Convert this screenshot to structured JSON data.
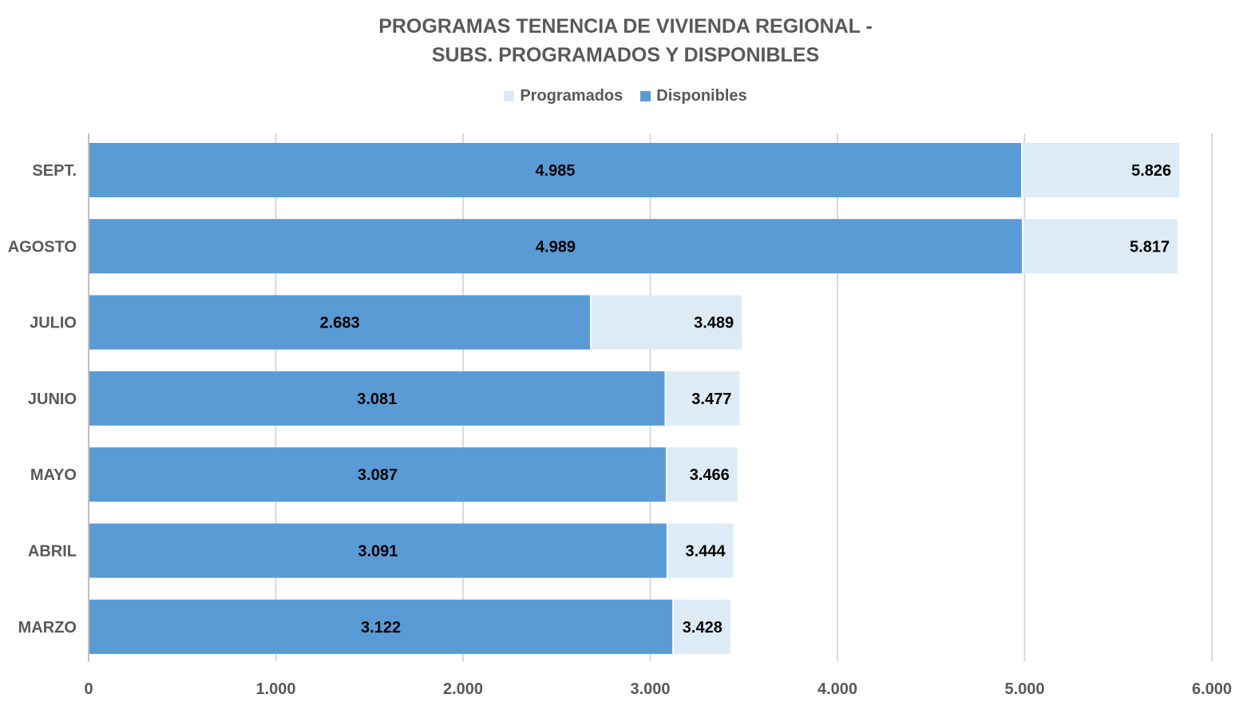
{
  "chart_data": {
    "type": "bar",
    "orientation": "horizontal",
    "title": [
      "PROGRAMAS TENENCIA DE VIVIENDA REGIONAL -",
      "SUBS. PROGRAMADOS Y DISPONIBLES"
    ],
    "categories": [
      "SEPT.",
      "AGOSTO",
      "JULIO",
      "JUNIO",
      "MAYO",
      "ABRIL",
      "MARZO"
    ],
    "series": [
      {
        "name": "Programados",
        "color": "#DDEBF7",
        "values": [
          5826,
          5817,
          3489,
          3477,
          3466,
          3444,
          3428
        ],
        "labels": [
          "5.826",
          "5.817",
          "3.489",
          "3.477",
          "3.466",
          "3.444",
          "3.428"
        ]
      },
      {
        "name": "Disponibles",
        "color": "#5B9BD5",
        "values": [
          4985,
          4989,
          2683,
          3081,
          3087,
          3091,
          3122
        ],
        "labels": [
          "4.985",
          "4.989",
          "2.683",
          "3.081",
          "3.087",
          "3.091",
          "3.122"
        ]
      }
    ],
    "xlim": [
      0,
      6000
    ],
    "xticks": [
      0,
      1000,
      2000,
      3000,
      4000,
      5000,
      6000
    ],
    "xtick_labels": [
      "0",
      "1.000",
      "2.000",
      "3.000",
      "4.000",
      "5.000",
      "6.000"
    ],
    "grid": true,
    "legend_position": "top-center",
    "gridline_color": "#D9D9D9"
  }
}
